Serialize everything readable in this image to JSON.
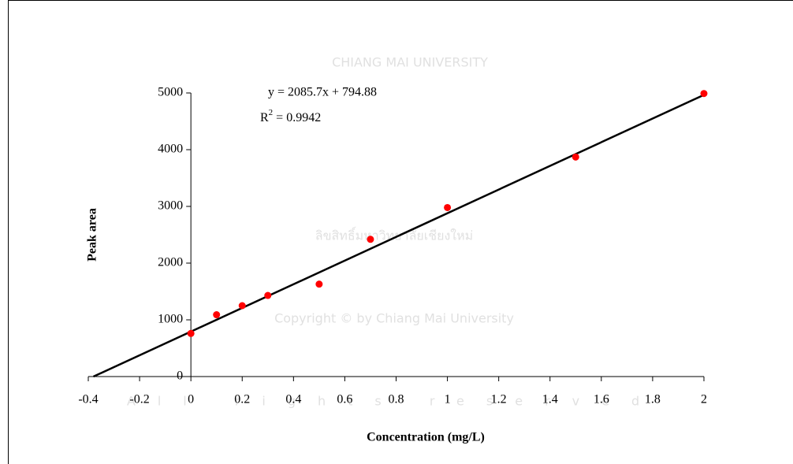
{
  "chart_data": {
    "type": "scatter",
    "x_label": "Concentration (mg/L)",
    "y_label": "Peak area",
    "x": [
      0,
      0.1,
      0.2,
      0.3,
      0.5,
      0.7,
      1,
      1.5,
      2
    ],
    "series": [
      {
        "color": "#ff0000",
        "values": [
          760,
          1090,
          1250,
          1430,
          1630,
          2420,
          2980,
          3870,
          4990
        ]
      }
    ],
    "trendline": {
      "color": "#000000",
      "x": [
        -0.38,
        2
      ],
      "values": [
        0,
        4966
      ]
    },
    "equation": "y =  2085.7x + 794.88",
    "r2": {
      "base": "R",
      "sup": "2",
      "rest": " =  0.9942"
    },
    "xlim": [
      -0.4,
      2
    ],
    "ylim": [
      0,
      5000
    ],
    "xticks": [
      -0.4,
      -0.2,
      0,
      0.2,
      0.4,
      0.6,
      0.8,
      1,
      1.2,
      1.4,
      1.6,
      1.8,
      2
    ],
    "yticks": [
      0,
      1000,
      2000,
      3000,
      4000,
      5000
    ]
  },
  "watermark": {
    "seal": "CHIANG MAI UNIVERSITY",
    "thai": "ลิขสิทธิ์มหาวิทยาลัยเชียงใหม่",
    "copyright": "Copyright © by Chiang Mai University",
    "rights": "All rights reserved"
  }
}
